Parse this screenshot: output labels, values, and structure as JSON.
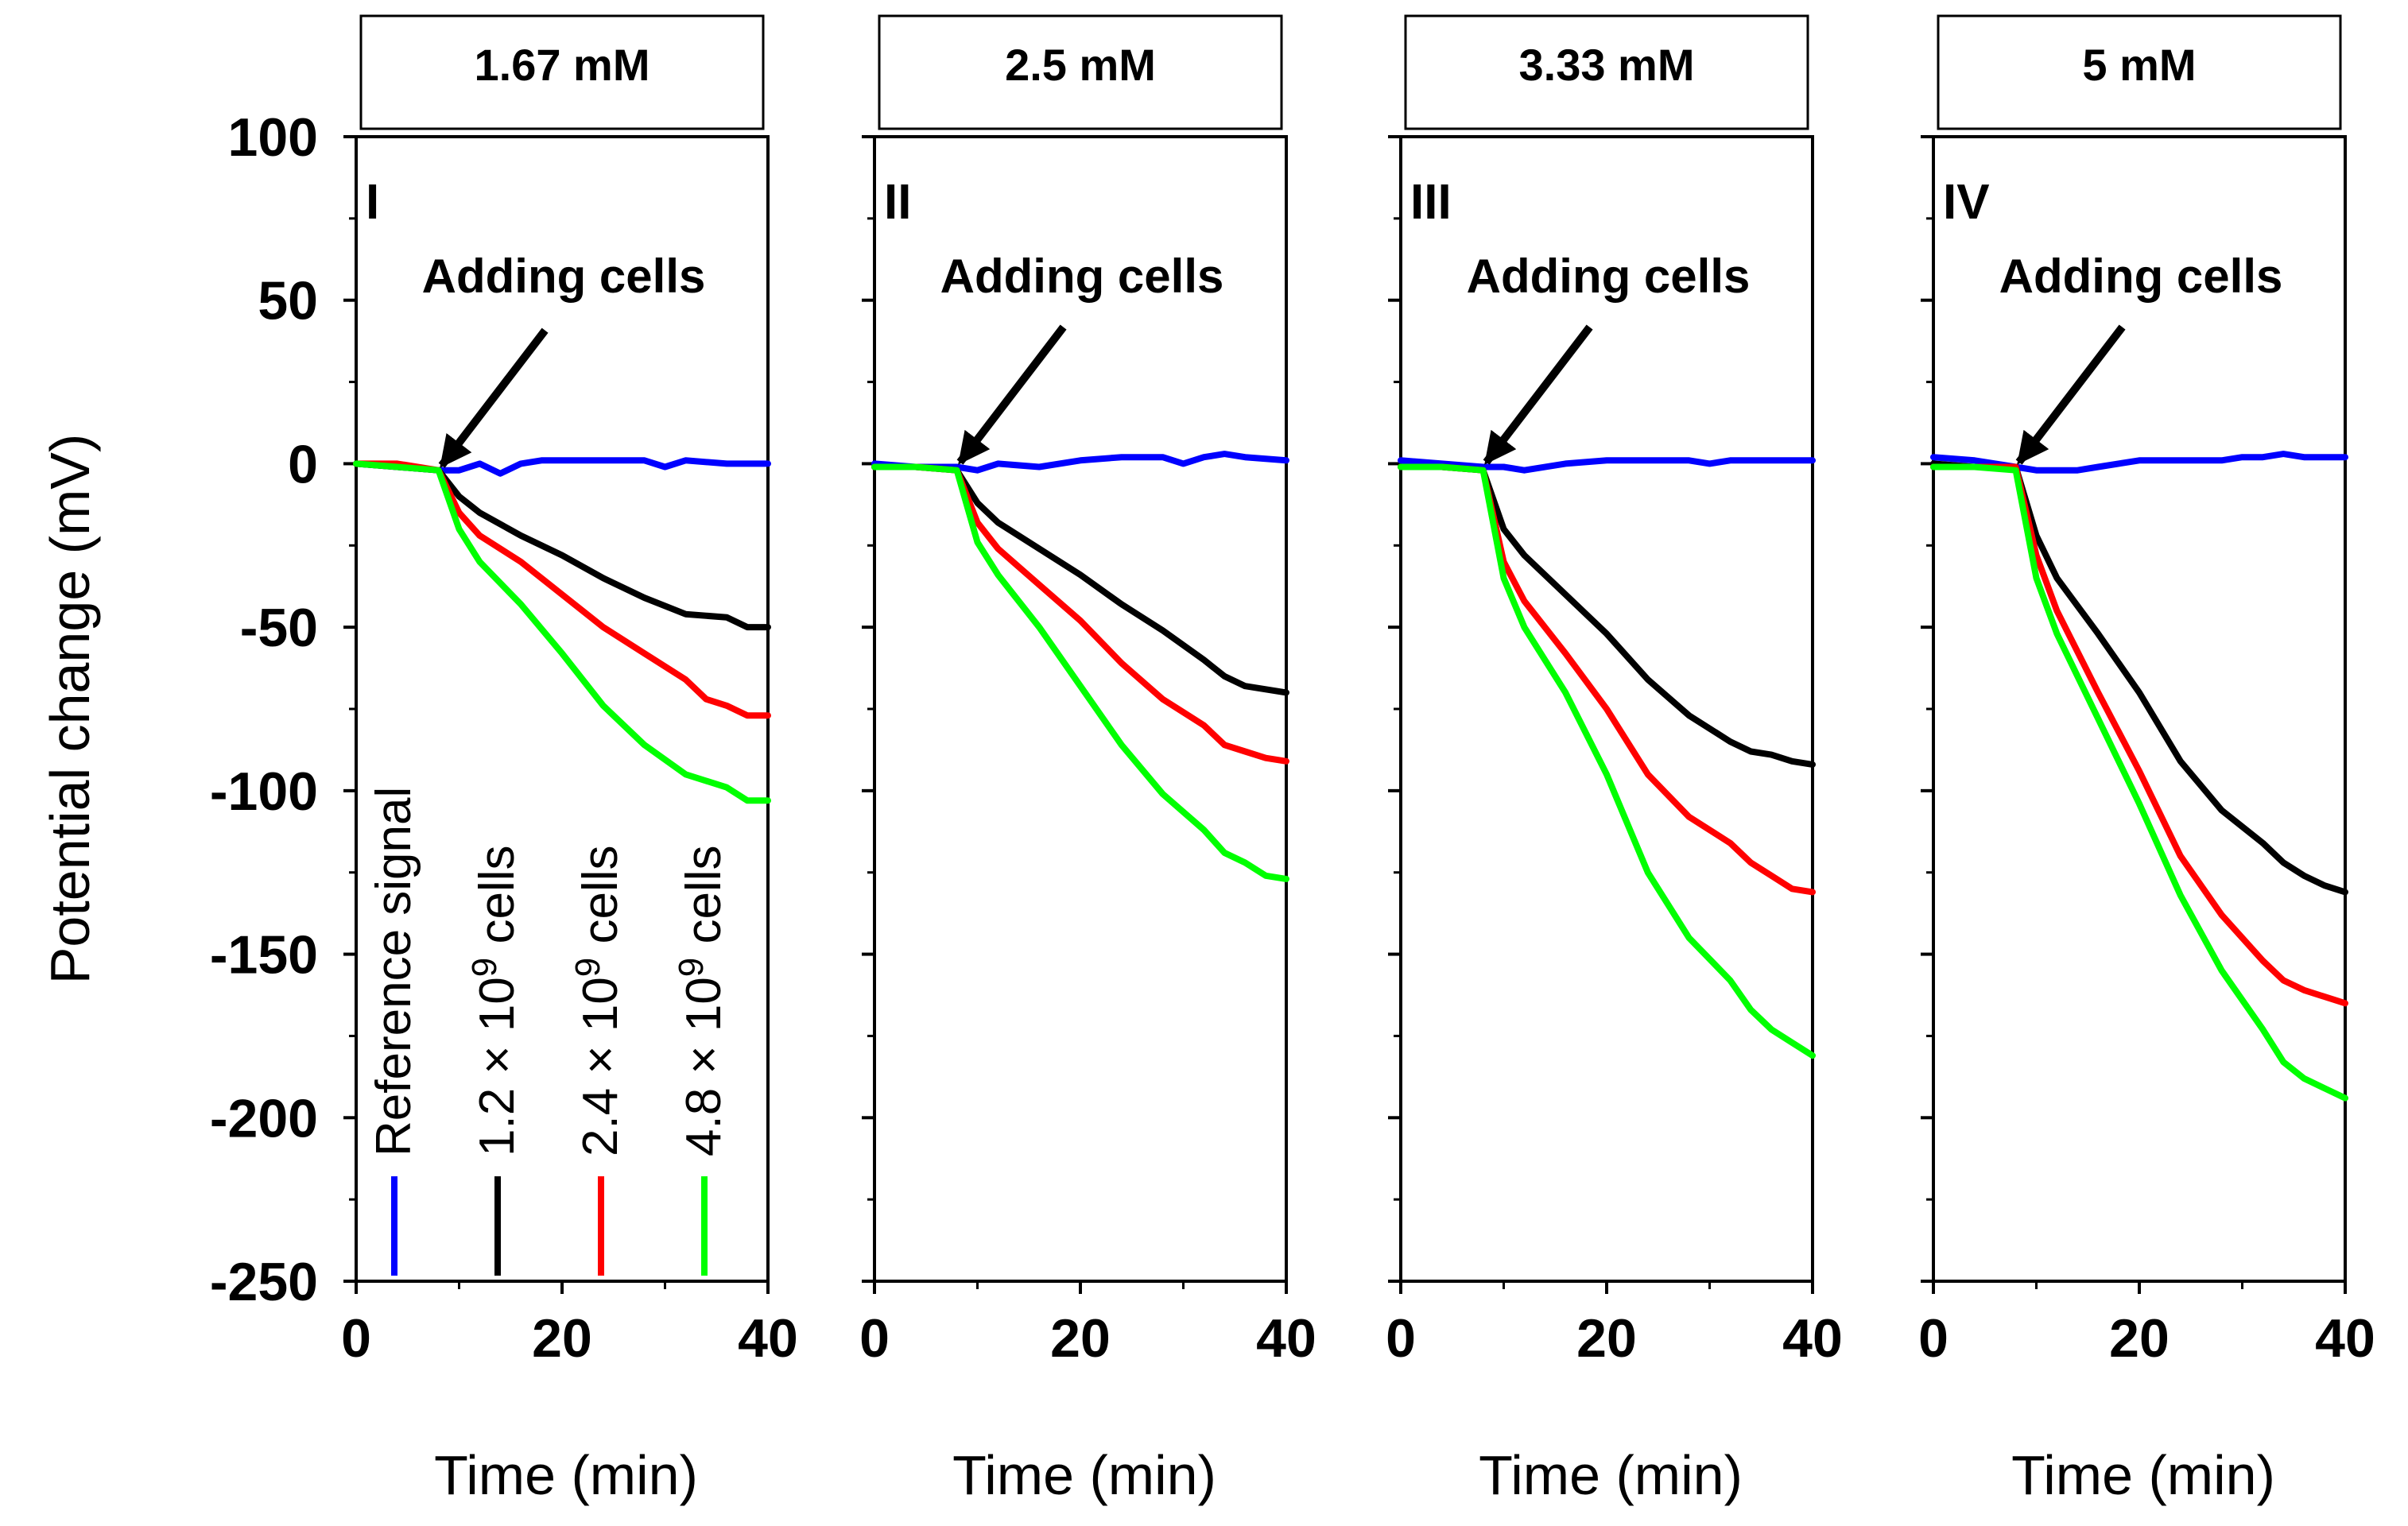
{
  "chart_data": {
    "type": "line",
    "ylabel": "Potential change (mV)",
    "xlabel": "Time (min)",
    "ylim": [
      -250,
      100
    ],
    "xlim": [
      0,
      40
    ],
    "yticks": [
      100,
      50,
      0,
      -50,
      -100,
      -150,
      -200,
      -250
    ],
    "xticks": [
      0,
      20,
      40
    ],
    "annotation": "Adding cells",
    "legend": [
      {
        "name": "Reference signal",
        "text": "Reference signal",
        "color": "#0000ff"
      },
      {
        "name": "1.2 × 10^9 cells",
        "prefix": "1.2 × 10",
        "sup": "9",
        "suffix": " cells",
        "color": "#000000"
      },
      {
        "name": "2.4 × 10^9 cells",
        "prefix": "2.4 × 10",
        "sup": "9",
        "suffix": " cells",
        "color": "#ff0000"
      },
      {
        "name": "4.8 × 10^9 cells",
        "prefix": "4.8 × 10",
        "sup": "9",
        "suffix": " cells",
        "color": "#00ff00"
      }
    ],
    "panels": [
      {
        "title": "1.67 mM",
        "label": "I",
        "arrow_at": [
          8,
          -2
        ],
        "series": [
          {
            "name": "Reference signal",
            "color": "#0000ff",
            "x": [
              0,
              4,
              8,
              10,
              12,
              14,
              16,
              18,
              20,
              24,
              28,
              30,
              32,
              36,
              40
            ],
            "y": [
              0,
              -1,
              -2,
              -2,
              0,
              -3,
              0,
              1,
              1,
              1,
              1,
              -1,
              1,
              0,
              0
            ]
          },
          {
            "name": "1.2 × 10^9 cells",
            "color": "#000000",
            "x": [
              0,
              4,
              8,
              10,
              12,
              16,
              20,
              24,
              28,
              32,
              36,
              38,
              40
            ],
            "y": [
              0,
              -1,
              -2,
              -10,
              -15,
              -22,
              -28,
              -35,
              -41,
              -46,
              -47,
              -50,
              -50
            ]
          },
          {
            "name": "2.4 × 10^9 cells",
            "color": "#ff0000",
            "x": [
              0,
              4,
              8,
              10,
              12,
              16,
              20,
              24,
              28,
              32,
              34,
              36,
              38,
              40
            ],
            "y": [
              0,
              0,
              -2,
              -15,
              -22,
              -30,
              -40,
              -50,
              -58,
              -66,
              -72,
              -74,
              -77,
              -77
            ]
          },
          {
            "name": "4.8 × 10^9 cells",
            "color": "#00ff00",
            "x": [
              0,
              4,
              8,
              10,
              12,
              16,
              20,
              24,
              28,
              32,
              36,
              38,
              40
            ],
            "y": [
              0,
              -1,
              -2,
              -20,
              -30,
              -43,
              -58,
              -74,
              -86,
              -95,
              -99,
              -103,
              -103
            ]
          }
        ]
      },
      {
        "title": "2.5 mM",
        "label": "II",
        "arrow_at": [
          8,
          -1
        ],
        "series": [
          {
            "name": "Reference signal",
            "color": "#0000ff",
            "x": [
              0,
              4,
              8,
              10,
              12,
              16,
              20,
              24,
              28,
              30,
              32,
              34,
              36,
              40
            ],
            "y": [
              0,
              -1,
              -1,
              -2,
              0,
              -1,
              1,
              2,
              2,
              0,
              2,
              3,
              2,
              1
            ]
          },
          {
            "name": "1.2 × 10^9 cells",
            "color": "#000000",
            "x": [
              0,
              4,
              8,
              10,
              12,
              16,
              20,
              24,
              28,
              32,
              34,
              36,
              38,
              40
            ],
            "y": [
              -1,
              -1,
              -2,
              -12,
              -18,
              -26,
              -34,
              -43,
              -51,
              -60,
              -65,
              -68,
              -69,
              -70
            ]
          },
          {
            "name": "2.4 × 10^9 cells",
            "color": "#ff0000",
            "x": [
              0,
              4,
              8,
              10,
              12,
              16,
              20,
              24,
              28,
              32,
              34,
              36,
              38,
              40
            ],
            "y": [
              -1,
              -1,
              -2,
              -18,
              -26,
              -37,
              -48,
              -61,
              -72,
              -80,
              -86,
              -88,
              -90,
              -91
            ]
          },
          {
            "name": "4.8 × 10^9 cells",
            "color": "#00ff00",
            "x": [
              0,
              4,
              8,
              10,
              12,
              16,
              20,
              24,
              28,
              32,
              34,
              36,
              38,
              40
            ],
            "y": [
              -1,
              -1,
              -2,
              -24,
              -34,
              -50,
              -68,
              -86,
              -101,
              -112,
              -119,
              -122,
              -126,
              -127
            ]
          }
        ]
      },
      {
        "title": "3.33 mM",
        "label": "III",
        "arrow_at": [
          8,
          -1
        ],
        "series": [
          {
            "name": "Reference signal",
            "color": "#0000ff",
            "x": [
              0,
              4,
              8,
              10,
              12,
              16,
              20,
              24,
              28,
              30,
              32,
              36,
              40
            ],
            "y": [
              1,
              0,
              -1,
              -1,
              -2,
              0,
              1,
              1,
              1,
              0,
              1,
              1,
              1
            ]
          },
          {
            "name": "1.2 × 10^9 cells",
            "color": "#000000",
            "x": [
              0,
              4,
              8,
              10,
              12,
              16,
              20,
              24,
              28,
              32,
              34,
              36,
              38,
              40
            ],
            "y": [
              -1,
              -1,
              -2,
              -20,
              -28,
              -40,
              -52,
              -66,
              -77,
              -85,
              -88,
              -89,
              -91,
              -92
            ]
          },
          {
            "name": "2.4 × 10^9 cells",
            "color": "#ff0000",
            "x": [
              0,
              4,
              8,
              10,
              12,
              16,
              20,
              24,
              28,
              32,
              34,
              36,
              38,
              40
            ],
            "y": [
              -1,
              -1,
              -2,
              -30,
              -42,
              -58,
              -75,
              -95,
              -108,
              -116,
              -122,
              -126,
              -130,
              -131
            ]
          },
          {
            "name": "4.8 × 10^9 cells",
            "color": "#00ff00",
            "x": [
              0,
              4,
              8,
              10,
              12,
              16,
              20,
              24,
              28,
              32,
              34,
              36,
              38,
              40
            ],
            "y": [
              -1,
              -1,
              -2,
              -35,
              -50,
              -70,
              -95,
              -125,
              -145,
              -158,
              -167,
              -173,
              -177,
              -181
            ]
          }
        ]
      },
      {
        "title": "5 mM",
        "label": "IV",
        "arrow_at": [
          8,
          -1
        ],
        "series": [
          {
            "name": "Reference signal",
            "color": "#0000ff",
            "x": [
              0,
              4,
              8,
              10,
              12,
              14,
              16,
              20,
              24,
              28,
              30,
              32,
              34,
              36,
              40
            ],
            "y": [
              2,
              1,
              -1,
              -2,
              -2,
              -2,
              -1,
              1,
              1,
              1,
              2,
              2,
              3,
              2,
              2
            ]
          },
          {
            "name": "1.2 × 10^9 cells",
            "color": "#000000",
            "x": [
              0,
              4,
              8,
              10,
              12,
              16,
              20,
              24,
              28,
              32,
              34,
              36,
              38,
              40
            ],
            "y": [
              0,
              -1,
              -1,
              -22,
              -35,
              -52,
              -70,
              -91,
              -106,
              -116,
              -122,
              -126,
              -129,
              -131
            ]
          },
          {
            "name": "2.4 × 10^9 cells",
            "color": "#ff0000",
            "x": [
              0,
              4,
              8,
              10,
              12,
              16,
              20,
              24,
              28,
              32,
              34,
              36,
              38,
              40
            ],
            "y": [
              -1,
              -1,
              -1,
              -28,
              -45,
              -70,
              -94,
              -120,
              -138,
              -152,
              -158,
              -161,
              -163,
              -165
            ]
          },
          {
            "name": "4.8 × 10^9 cells",
            "color": "#00ff00",
            "x": [
              0,
              4,
              8,
              10,
              12,
              16,
              20,
              24,
              28,
              32,
              34,
              36,
              38,
              40
            ],
            "y": [
              -1,
              -1,
              -2,
              -35,
              -52,
              -78,
              -104,
              -132,
              -155,
              -173,
              -183,
              -188,
              -191,
              -194
            ]
          }
        ]
      }
    ]
  }
}
